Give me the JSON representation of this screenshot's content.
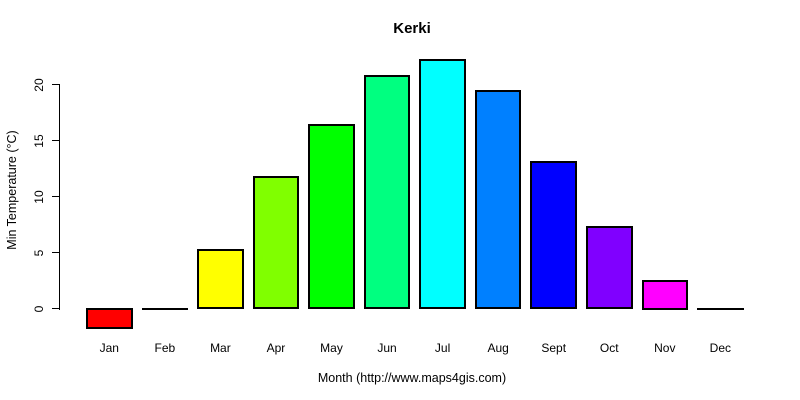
{
  "chart_data": {
    "type": "bar",
    "title": "Kerki",
    "xlabel": "Month (http://www.maps4gis.com)",
    "ylabel": "Min Temperature (°C)",
    "categories": [
      "Jan",
      "Feb",
      "Mar",
      "Apr",
      "May",
      "Jun",
      "Jul",
      "Aug",
      "Sept",
      "Oct",
      "Nov",
      "Dec"
    ],
    "values": [
      -1.7,
      0.2,
      5.2,
      11.7,
      16.4,
      20.8,
      22.2,
      19.4,
      13.1,
      7.3,
      2.5,
      0.0
    ],
    "bar_colors": [
      "#FF0000",
      "#FF8000",
      "#FFFF00",
      "#80FF00",
      "#00FF00",
      "#00FF80",
      "#00FFFF",
      "#0080FF",
      "#0000FF",
      "#8000FF",
      "#FF00FF",
      "#FF0080"
    ],
    "bar_border_color": "#000000",
    "yticks": [
      0,
      5,
      10,
      15,
      20
    ],
    "ylim": [
      -2.5,
      22.5
    ],
    "grid": false,
    "legend_position": "none",
    "background_color": "#FFFFFF",
    "text_color": "#000000"
  }
}
